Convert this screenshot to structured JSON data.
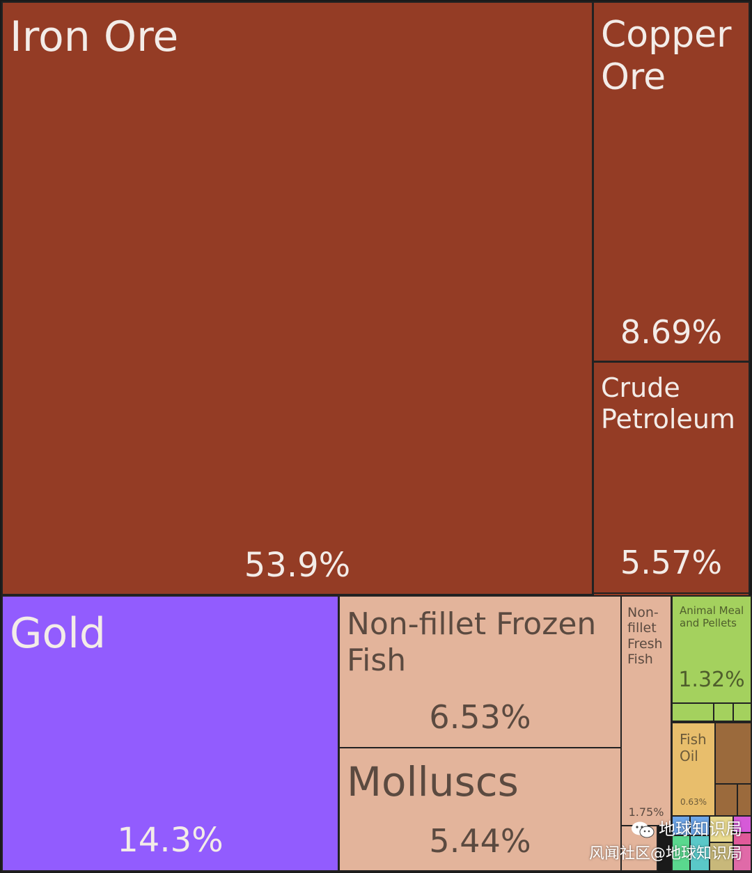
{
  "chart_data": {
    "type": "treemap",
    "items": [
      {
        "key": "iron",
        "label": "Iron Ore",
        "value": 53.9,
        "pct_label": "53.9%",
        "color": "#943c25"
      },
      {
        "key": "copper",
        "label": "Copper Ore",
        "value": 8.69,
        "pct_label": "8.69%",
        "color": "#943c25"
      },
      {
        "key": "crude",
        "label": "Crude Petroleum",
        "value": 5.57,
        "pct_label": "5.57%",
        "color": "#943c25"
      },
      {
        "key": "gold",
        "label": "Gold",
        "value": 14.3,
        "pct_label": "14.3%",
        "color": "#925cfe"
      },
      {
        "key": "nonfillet_frozen",
        "label": "Non-fillet Frozen Fish",
        "value": 6.53,
        "pct_label": "6.53%",
        "color": "#e3b49b"
      },
      {
        "key": "molluscs",
        "label": "Molluscs",
        "value": 5.44,
        "pct_label": "5.44%",
        "color": "#e3b49b"
      },
      {
        "key": "nonfillet_fresh",
        "label": "Non-fillet Fresh Fish",
        "value": 1.75,
        "pct_label": "1.75%",
        "color": "#e3b49b"
      },
      {
        "key": "animal_meal",
        "label": "Animal Meal and Pellets",
        "value": 1.32,
        "pct_label": "1.32%",
        "color": "#a4d15e"
      },
      {
        "key": "fish_oil",
        "label": "Fish Oil",
        "value": 0.63,
        "pct_label": "0.63%",
        "color": "#e8be6c"
      }
    ]
  },
  "watermark": {
    "line1": "地球知识局",
    "line2": "风闻社区@地球知识局"
  },
  "colors": {
    "minerals": "#943c25",
    "precious_metals": "#925cfe",
    "animal_products": "#e3b49b",
    "foodstuffs": "#a4d15e",
    "fats": "#e8be6c",
    "wood": "#9b6a3c"
  }
}
